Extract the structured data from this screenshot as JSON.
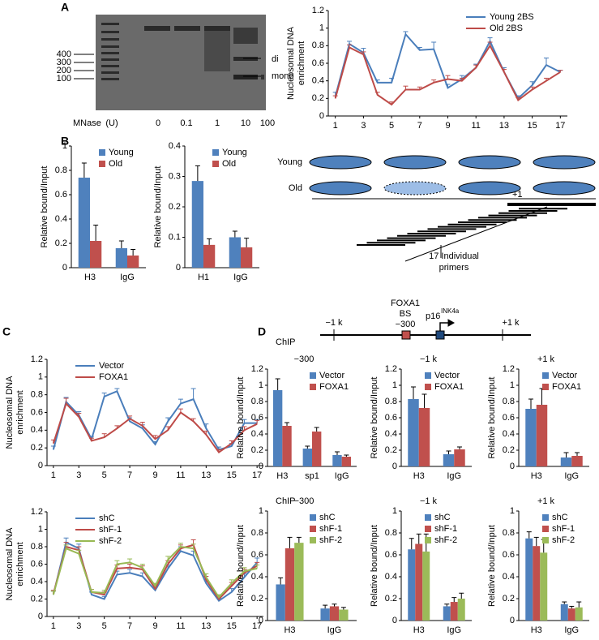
{
  "figure": {
    "panels": [
      "A",
      "B",
      "C",
      "D"
    ],
    "gel": {
      "markers": [
        "400",
        "300",
        "200",
        "100"
      ],
      "bands": [
        "di",
        "mono"
      ],
      "xlabel": "MNase",
      "unit": "(U)",
      "lanes": [
        "0",
        "0.1",
        "1",
        "10",
        "100"
      ]
    },
    "schematic": {
      "rows": [
        "Young",
        "Old"
      ],
      "site": "+1",
      "primers": [
        "17 Individual",
        "primers"
      ]
    },
    "promoter": {
      "left": "−1 k",
      "right": "+1 k",
      "bs": [
        "FOXA1",
        "BS",
        "−300"
      ],
      "gene": "p16",
      "gene_sup": "INK4a",
      "chip": [
        "ChIP",
        "ChIP"
      ]
    }
  },
  "chart_data": [
    {
      "type": "line",
      "ylabel": [
        "Nucleosomal DNA",
        "enrichment"
      ],
      "legend": "upper right",
      "x": [
        1,
        2,
        3,
        4,
        5,
        6,
        7,
        8,
        9,
        10,
        11,
        12,
        13,
        14,
        15,
        16,
        17
      ],
      "xlim": [
        0.5,
        17.5
      ],
      "xticks": [
        1,
        3,
        5,
        7,
        9,
        11,
        13,
        15,
        17
      ],
      "ylim": [
        0,
        1.2
      ],
      "yticks": [
        0,
        0.2,
        0.4,
        0.6,
        0.8,
        1,
        1.2
      ],
      "series": [
        {
          "name": "Young 2BS",
          "color": "#4a7ebb",
          "values": [
            0.22,
            0.82,
            0.72,
            0.38,
            0.38,
            0.93,
            0.75,
            0.76,
            0.32,
            0.42,
            0.55,
            0.85,
            0.5,
            0.2,
            0.35,
            0.58,
            0.5
          ],
          "errors": [
            0.05,
            0.03,
            0.05,
            0.03,
            0.05,
            0.03,
            0.03,
            0.08,
            0.04,
            0.04,
            0.04,
            0.04,
            0.05,
            0.03,
            0.04,
            0.08,
            0.02
          ]
        },
        {
          "name": "Old 2BS",
          "color": "#be4b48",
          "values": [
            0.2,
            0.78,
            0.7,
            0.24,
            0.13,
            0.3,
            0.3,
            0.38,
            0.42,
            0.4,
            0.55,
            0.8,
            0.5,
            0.18,
            0.3,
            0.4,
            0.5
          ],
          "errors": [
            0.03,
            0.03,
            0.03,
            0.03,
            0.03,
            0.04,
            0.03,
            0.03,
            0.04,
            0.03,
            0.03,
            0.04,
            0.03,
            0.03,
            0.03,
            0.03,
            0.02
          ]
        }
      ]
    },
    {
      "type": "bar",
      "ylabel": [
        "Relative bound/Input"
      ],
      "legend": "upper right",
      "categories": [
        "H3",
        "IgG"
      ],
      "ylim": [
        0,
        1
      ],
      "yticks": [
        0,
        0.2,
        0.4,
        0.6,
        0.8,
        1
      ],
      "series": [
        {
          "name": "Young",
          "color": "#4f81bd",
          "values": [
            0.74,
            0.16
          ],
          "errors": [
            0.12,
            0.06
          ]
        },
        {
          "name": "Old",
          "color": "#c0504d",
          "values": [
            0.22,
            0.1
          ],
          "errors": [
            0.13,
            0.05
          ]
        }
      ]
    },
    {
      "type": "bar",
      "ylabel": [
        "Relative bound/Input"
      ],
      "legend": "upper right",
      "categories": [
        "H1",
        "IgG"
      ],
      "ylim": [
        0,
        0.4
      ],
      "yticks": [
        0,
        0.1,
        0.2,
        0.3,
        0.4
      ],
      "series": [
        {
          "name": "Young",
          "color": "#4f81bd",
          "values": [
            0.285,
            0.1
          ],
          "errors": [
            0.05,
            0.02
          ]
        },
        {
          "name": "Old",
          "color": "#c0504d",
          "values": [
            0.075,
            0.067
          ],
          "errors": [
            0.02,
            0.03
          ]
        }
      ]
    },
    {
      "type": "line",
      "ylabel": [
        "Nucleosomal DNA",
        "enrichment"
      ],
      "legend": "upper left",
      "x": [
        1,
        2,
        3,
        4,
        5,
        6,
        7,
        8,
        9,
        10,
        11,
        12,
        13,
        14,
        15,
        16,
        17
      ],
      "xlim": [
        0.5,
        17.5
      ],
      "xticks": [
        1,
        3,
        5,
        7,
        9,
        11,
        13,
        15,
        17
      ],
      "ylim": [
        0,
        1.2
      ],
      "yticks": [
        0,
        0.2,
        0.4,
        0.6,
        0.8,
        1,
        1.2
      ],
      "series": [
        {
          "name": "Vector",
          "color": "#4a7ebb",
          "values": [
            0.18,
            0.72,
            0.57,
            0.3,
            0.78,
            0.84,
            0.5,
            0.42,
            0.24,
            0.5,
            0.7,
            0.75,
            0.42,
            0.18,
            0.22,
            0.48,
            0.48
          ],
          "errors": [
            0.04,
            0.05,
            0.04,
            0.03,
            0.04,
            0.03,
            0.04,
            0.04,
            0.03,
            0.04,
            0.05,
            0.12,
            0.05,
            0.03,
            0.03,
            0.04,
            0.04
          ]
        },
        {
          "name": "FOXA1",
          "color": "#be4b48",
          "values": [
            0.25,
            0.7,
            0.55,
            0.28,
            0.32,
            0.42,
            0.53,
            0.45,
            0.3,
            0.4,
            0.6,
            0.5,
            0.35,
            0.15,
            0.25,
            0.4,
            0.47
          ],
          "errors": [
            0.04,
            0.06,
            0.04,
            0.03,
            0.04,
            0.03,
            0.03,
            0.04,
            0.04,
            0.04,
            0.04,
            0.03,
            0.04,
            0.03,
            0.03,
            0.04,
            0.04
          ]
        }
      ]
    },
    {
      "type": "line",
      "ylabel": [
        "Nucleosomal DNA",
        "enrichment"
      ],
      "legend": "upper left",
      "x": [
        1,
        2,
        3,
        4,
        5,
        6,
        7,
        8,
        9,
        10,
        11,
        12,
        13,
        14,
        15,
        16,
        17
      ],
      "xlim": [
        0.5,
        17.5
      ],
      "xticks": [
        1,
        3,
        5,
        7,
        9,
        11,
        13,
        15,
        17
      ],
      "ylim": [
        0,
        1.2
      ],
      "yticks": [
        0,
        0.2,
        0.4,
        0.6,
        0.8,
        1,
        1.2
      ],
      "series": [
        {
          "name": "shC",
          "color": "#4a7ebb",
          "values": [
            0.25,
            0.85,
            0.78,
            0.25,
            0.2,
            0.48,
            0.5,
            0.46,
            0.3,
            0.55,
            0.75,
            0.7,
            0.38,
            0.18,
            0.28,
            0.45,
            0.62
          ],
          "errors": [
            0.04,
            0.05,
            0.05,
            0.03,
            0.03,
            0.04,
            0.04,
            0.04,
            0.03,
            0.04,
            0.05,
            0.05,
            0.04,
            0.03,
            0.04,
            0.04,
            0.05
          ]
        },
        {
          "name": "shF-1",
          "color": "#be4b48",
          "values": [
            0.26,
            0.8,
            0.76,
            0.28,
            0.25,
            0.55,
            0.56,
            0.54,
            0.32,
            0.6,
            0.78,
            0.82,
            0.42,
            0.2,
            0.35,
            0.5,
            0.58
          ],
          "errors": [
            0.04,
            0.05,
            0.04,
            0.03,
            0.03,
            0.04,
            0.04,
            0.04,
            0.03,
            0.04,
            0.04,
            0.06,
            0.04,
            0.03,
            0.04,
            0.04,
            0.04
          ]
        },
        {
          "name": "shF-2",
          "color": "#98b954",
          "values": [
            0.25,
            0.78,
            0.72,
            0.28,
            0.27,
            0.6,
            0.62,
            0.56,
            0.35,
            0.65,
            0.8,
            0.78,
            0.45,
            0.22,
            0.38,
            0.52,
            0.55
          ],
          "errors": [
            0.04,
            0.04,
            0.04,
            0.03,
            0.03,
            0.04,
            0.04,
            0.04,
            0.03,
            0.04,
            0.04,
            0.05,
            0.04,
            0.03,
            0.04,
            0.04,
            0.04
          ]
        }
      ]
    },
    {
      "type": "bar",
      "title": "−300",
      "ylabel": [
        "Relative bound/Input"
      ],
      "legend": "upper right",
      "categories": [
        "H3",
        "sp1",
        "IgG"
      ],
      "ylim": [
        0,
        1.2
      ],
      "yticks": [
        0,
        0.2,
        0.4,
        0.6,
        0.8,
        1,
        1.2
      ],
      "series": [
        {
          "name": "Vector",
          "color": "#4f81bd",
          "values": [
            0.94,
            0.22,
            0.14
          ],
          "errors": [
            0.14,
            0.03,
            0.04
          ]
        },
        {
          "name": "FOXA1",
          "color": "#c0504d",
          "values": [
            0.5,
            0.43,
            0.12
          ],
          "errors": [
            0.04,
            0.05,
            0.02
          ]
        }
      ]
    },
    {
      "type": "bar",
      "title": "−1 k",
      "ylabel": [
        "Relative bound/Input"
      ],
      "legend": "upper right",
      "categories": [
        "H3",
        "IgG"
      ],
      "ylim": [
        0,
        1.2
      ],
      "yticks": [
        0,
        0.2,
        0.4,
        0.6,
        0.8,
        1,
        1.2
      ],
      "series": [
        {
          "name": "Vector",
          "color": "#4f81bd",
          "values": [
            0.83,
            0.15
          ],
          "errors": [
            0.15,
            0.04
          ]
        },
        {
          "name": "FOXA1",
          "color": "#c0504d",
          "values": [
            0.72,
            0.21
          ],
          "errors": [
            0.17,
            0.03
          ]
        }
      ]
    },
    {
      "type": "bar",
      "title": "+1 k",
      "ylabel": [
        "Relative bound/Input"
      ],
      "legend": "upper right",
      "categories": [
        "H3",
        "IgG"
      ],
      "ylim": [
        0,
        1.2
      ],
      "yticks": [
        0,
        0.2,
        0.4,
        0.6,
        0.8,
        1,
        1.2
      ],
      "series": [
        {
          "name": "Vector",
          "color": "#4f81bd",
          "values": [
            0.71,
            0.11
          ],
          "errors": [
            0.12,
            0.06
          ]
        },
        {
          "name": "FOXA1",
          "color": "#c0504d",
          "values": [
            0.76,
            0.13
          ],
          "errors": [
            0.2,
            0.04
          ]
        }
      ]
    },
    {
      "type": "bar",
      "title": "−300",
      "ylabel": [
        "Relative bound/Input"
      ],
      "legend": "upper right",
      "categories": [
        "H3",
        "IgG"
      ],
      "ylim": [
        0,
        1
      ],
      "yticks": [
        0,
        0.2,
        0.4,
        0.6,
        0.8,
        1
      ],
      "series": [
        {
          "name": "shC",
          "color": "#4f81bd",
          "values": [
            0.33,
            0.11
          ],
          "errors": [
            0.06,
            0.03
          ]
        },
        {
          "name": "shF-1",
          "color": "#c0504d",
          "values": [
            0.66,
            0.13
          ],
          "errors": [
            0.1,
            0.02
          ]
        },
        {
          "name": "shF-2",
          "color": "#9bbb59",
          "values": [
            0.71,
            0.1
          ],
          "errors": [
            0.05,
            0.02
          ]
        }
      ]
    },
    {
      "type": "bar",
      "title": "−1 k",
      "ylabel": [
        "Relative bound/Input"
      ],
      "legend": "upper right",
      "categories": [
        "H3",
        "IgG"
      ],
      "ylim": [
        0,
        1
      ],
      "yticks": [
        0,
        0.2,
        0.4,
        0.6,
        0.8,
        1
      ],
      "series": [
        {
          "name": "shC",
          "color": "#4f81bd",
          "values": [
            0.65,
            0.13
          ],
          "errors": [
            0.1,
            0.02
          ]
        },
        {
          "name": "shF-1",
          "color": "#c0504d",
          "values": [
            0.7,
            0.17
          ],
          "errors": [
            0.09,
            0.04
          ]
        },
        {
          "name": "shF-2",
          "color": "#9bbb59",
          "values": [
            0.63,
            0.2
          ],
          "errors": [
            0.16,
            0.05
          ]
        }
      ]
    },
    {
      "type": "bar",
      "title": "+1 k",
      "ylabel": [
        "Relative bound/Input"
      ],
      "legend": "upper right",
      "categories": [
        "H3",
        "IgG"
      ],
      "ylim": [
        0,
        1
      ],
      "yticks": [
        0,
        0.2,
        0.4,
        0.6,
        0.8,
        1
      ],
      "series": [
        {
          "name": "shC",
          "color": "#4f81bd",
          "values": [
            0.75,
            0.15
          ],
          "errors": [
            0.06,
            0.02
          ]
        },
        {
          "name": "shF-1",
          "color": "#c0504d",
          "values": [
            0.68,
            0.11
          ],
          "errors": [
            0.08,
            0.02
          ]
        },
        {
          "name": "shF-2",
          "color": "#9bbb59",
          "values": [
            0.62,
            0.12
          ],
          "errors": [
            0.12,
            0.05
          ]
        }
      ]
    }
  ]
}
